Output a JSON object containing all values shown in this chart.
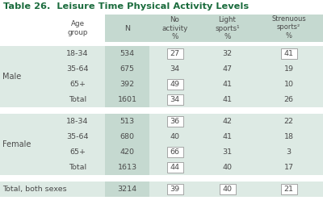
{
  "title": "Table 26.  Leisure Time Physical Activity Levels",
  "title_color": "#1a6b3c",
  "bg_color": "#ffffff",
  "header_col_bg": "#c5d9d0",
  "row_bg": "#c5d9d0",
  "col_bg_alt": "#ddeae4",
  "white": "#ffffff",
  "text_color": "#4a4a4a",
  "col_headers": [
    "Age\ngroup",
    "N",
    "No\nactivity\n%",
    "Light\nsports¹\n%",
    "Strenuous\nsports²\n%"
  ],
  "sections": [
    {
      "label": "Male",
      "rows": [
        {
          "age": "18-34",
          "n": "534",
          "no": "27",
          "light": "32",
          "stren": "41",
          "no_box": true,
          "stren_box": true
        },
        {
          "age": "35-64",
          "n": "675",
          "no": "34",
          "light": "47",
          "stren": "19",
          "no_box": false,
          "stren_box": false
        },
        {
          "age": "65+",
          "n": "392",
          "no": "49",
          "light": "41",
          "stren": "10",
          "no_box": true,
          "stren_box": false
        },
        {
          "age": "Total",
          "n": "1601",
          "no": "34",
          "light": "41",
          "stren": "26",
          "no_box": true,
          "stren_box": false
        }
      ]
    },
    {
      "label": "Female",
      "rows": [
        {
          "age": "18-34",
          "n": "513",
          "no": "36",
          "light": "42",
          "stren": "22",
          "no_box": true,
          "stren_box": false
        },
        {
          "age": "35-64",
          "n": "680",
          "no": "40",
          "light": "41",
          "stren": "18",
          "no_box": false,
          "stren_box": false
        },
        {
          "age": "65+",
          "n": "420",
          "no": "66",
          "light": "31",
          "stren": "3",
          "no_box": true,
          "stren_box": false
        },
        {
          "age": "Total",
          "n": "1613",
          "no": "44",
          "light": "40",
          "stren": "17",
          "no_box": true,
          "stren_box": false
        }
      ]
    }
  ],
  "total_row": {
    "label": "Total, both sexes",
    "n": "3214",
    "no": "39",
    "light": "40",
    "stren": "21",
    "no_box": true,
    "light_box": true,
    "stren_box": true
  }
}
